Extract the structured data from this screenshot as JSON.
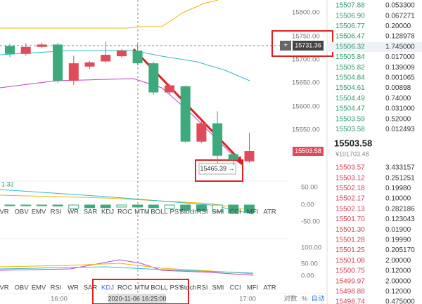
{
  "chart": {
    "price_axis": [
      "15800.00",
      "15750.00",
      "15700.00",
      "15650.00",
      "15600.00",
      "15550.00"
    ],
    "crosshair_price": "15731.36",
    "last_price_tag": "15503.58",
    "annotation": "15465.39 →",
    "macd_value": "1.32",
    "macd_axis": [
      "50.00",
      "0.00",
      "-50.00"
    ],
    "kdj_axis": [
      "100.00",
      "50.00",
      "0.00"
    ],
    "candles": [
      {
        "o": 15729,
        "c": 15712,
        "h": 15733,
        "l": 15705
      },
      {
        "o": 15712,
        "c": 15727,
        "h": 15735,
        "l": 15708
      },
      {
        "o": 15727,
        "c": 15732,
        "h": 15736,
        "l": 15724
      },
      {
        "o": 15732,
        "c": 15655,
        "h": 15736,
        "l": 15650
      },
      {
        "o": 15655,
        "c": 15692,
        "h": 15708,
        "l": 15646
      },
      {
        "o": 15685,
        "c": 15694,
        "h": 15697,
        "l": 15680
      },
      {
        "o": 15696,
        "c": 15710,
        "h": 15738,
        "l": 15693
      },
      {
        "o": 15707,
        "c": 15719,
        "h": 15722,
        "l": 15704
      },
      {
        "o": 15719,
        "c": 15692,
        "h": 15733,
        "l": 15688
      },
      {
        "o": 15692,
        "c": 15630,
        "h": 15695,
        "l": 15625
      },
      {
        "o": 15630,
        "c": 15645,
        "h": 15648,
        "l": 15627
      },
      {
        "o": 15643,
        "c": 15525,
        "h": 15645,
        "l": 15523
      },
      {
        "o": 15525,
        "c": 15564,
        "h": 15568,
        "l": 15522
      },
      {
        "o": 15564,
        "c": 15495,
        "h": 15590,
        "l": 15478
      },
      {
        "o": 15498,
        "c": 15486,
        "h": 15500,
        "l": 15475
      },
      {
        "o": 15483,
        "c": 15505,
        "h": 15544,
        "l": 15480
      }
    ],
    "macd_bars": [
      -2,
      -2,
      -2,
      -3,
      -10,
      -8,
      -8,
      -6,
      -6,
      -8,
      -10,
      -15,
      -17,
      -20,
      -24,
      -22
    ],
    "indicator_tabs": [
      "VR",
      "OBV",
      "EMV",
      "RSI",
      "WR",
      "SAR",
      "KDJ",
      "ROC",
      "MTM",
      "BOLL",
      "PSY",
      "StochRSI",
      "SMI",
      "CCI",
      "MFI",
      "ATR"
    ],
    "time_labels": [
      "16:00",
      "2020-11-06 16:25:00",
      "17:00"
    ],
    "scale_options": [
      "对数",
      "%",
      "自动"
    ]
  },
  "order_book": {
    "asks": [
      [
        "15507.88",
        "0.053300"
      ],
      [
        "15506.90",
        "0.067271"
      ],
      [
        "15506.77",
        "0.20000"
      ],
      [
        "15506.47",
        "0.128978"
      ],
      [
        "15506.32",
        "1.745000"
      ],
      [
        "15505.84",
        "0.017000"
      ],
      [
        "15505.82",
        "0.139009"
      ],
      [
        "15504.84",
        "0.001065"
      ],
      [
        "15504.61",
        "0.00898"
      ],
      [
        "15504.49",
        "0.74000"
      ],
      [
        "15504.47",
        "0.031000"
      ],
      [
        "15503.59",
        "0.52000"
      ],
      [
        "15503.58",
        "0.012493"
      ]
    ],
    "last_price": "15503.58",
    "last_price_cny": "¥101703.48",
    "bids": [
      [
        "15503.57",
        "3.433157"
      ],
      [
        "15503.12",
        "0.251251"
      ],
      [
        "15502.18",
        "0.19980"
      ],
      [
        "15502.17",
        "0.10000"
      ],
      [
        "15502.13",
        "0.282186"
      ],
      [
        "15501.70",
        "0.123043"
      ],
      [
        "15501.30",
        "0.01900"
      ],
      [
        "15501.28",
        "0.19990"
      ],
      [
        "15501.25",
        "0.205170"
      ],
      [
        "15501.08",
        "2.00000"
      ],
      [
        "15500.75",
        "0.12000"
      ],
      [
        "15499.97",
        "2.00000"
      ],
      [
        "15498.88",
        "0.12000"
      ],
      [
        "15498.74",
        "0.475000"
      ]
    ]
  }
}
